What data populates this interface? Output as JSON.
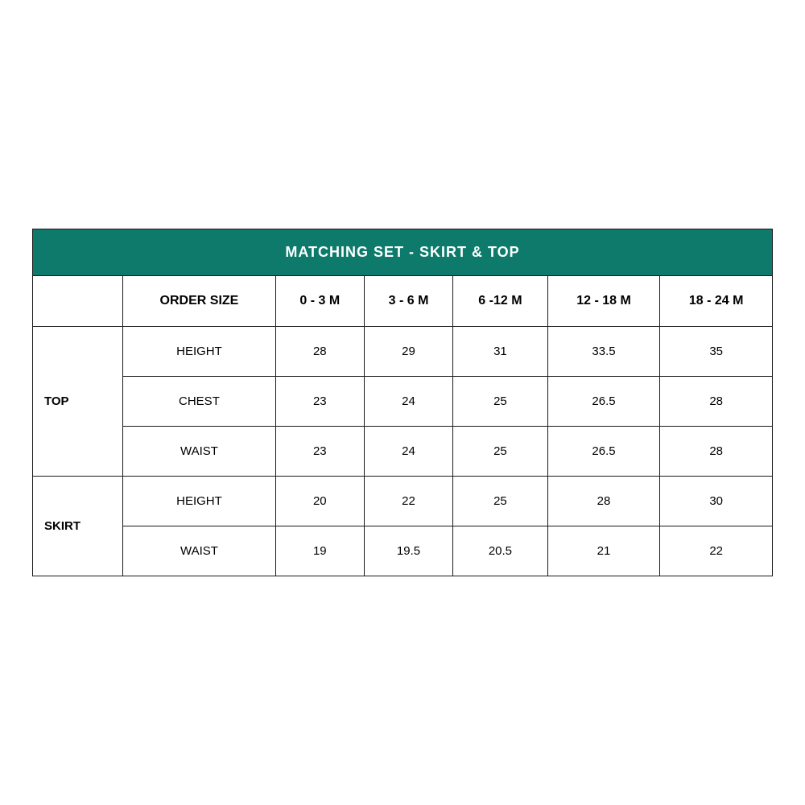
{
  "table": {
    "type": "table",
    "title": "MATCHING SET - SKIRT & TOP",
    "title_bg_color": "#0d7a6b",
    "title_text_color": "#ffffff",
    "border_color": "#1a1a1a",
    "background_color": "#ffffff",
    "text_color": "#000000",
    "title_fontsize": 18,
    "header_fontsize": 16,
    "cell_fontsize": 15,
    "columns": [
      "",
      "ORDER SIZE",
      "0 - 3 M",
      "3 - 6 M",
      "6 -12 M",
      "12 - 18 M",
      "18 - 24 M"
    ],
    "sections": [
      {
        "label": "TOP",
        "rows": [
          {
            "measure": "HEIGHT",
            "values": [
              "28",
              "29",
              "31",
              "33.5",
              "35"
            ]
          },
          {
            "measure": "CHEST",
            "values": [
              "23",
              "24",
              "25",
              "26.5",
              "28"
            ]
          },
          {
            "measure": "WAIST",
            "values": [
              "23",
              "24",
              "25",
              "26.5",
              "28"
            ]
          }
        ]
      },
      {
        "label": "SKIRT",
        "rows": [
          {
            "measure": "HEIGHT",
            "values": [
              "20",
              "22",
              "25",
              "28",
              "30"
            ]
          },
          {
            "measure": "WAIST",
            "values": [
              "19",
              "19.5",
              "20.5",
              "21",
              "22"
            ]
          }
        ]
      }
    ]
  }
}
